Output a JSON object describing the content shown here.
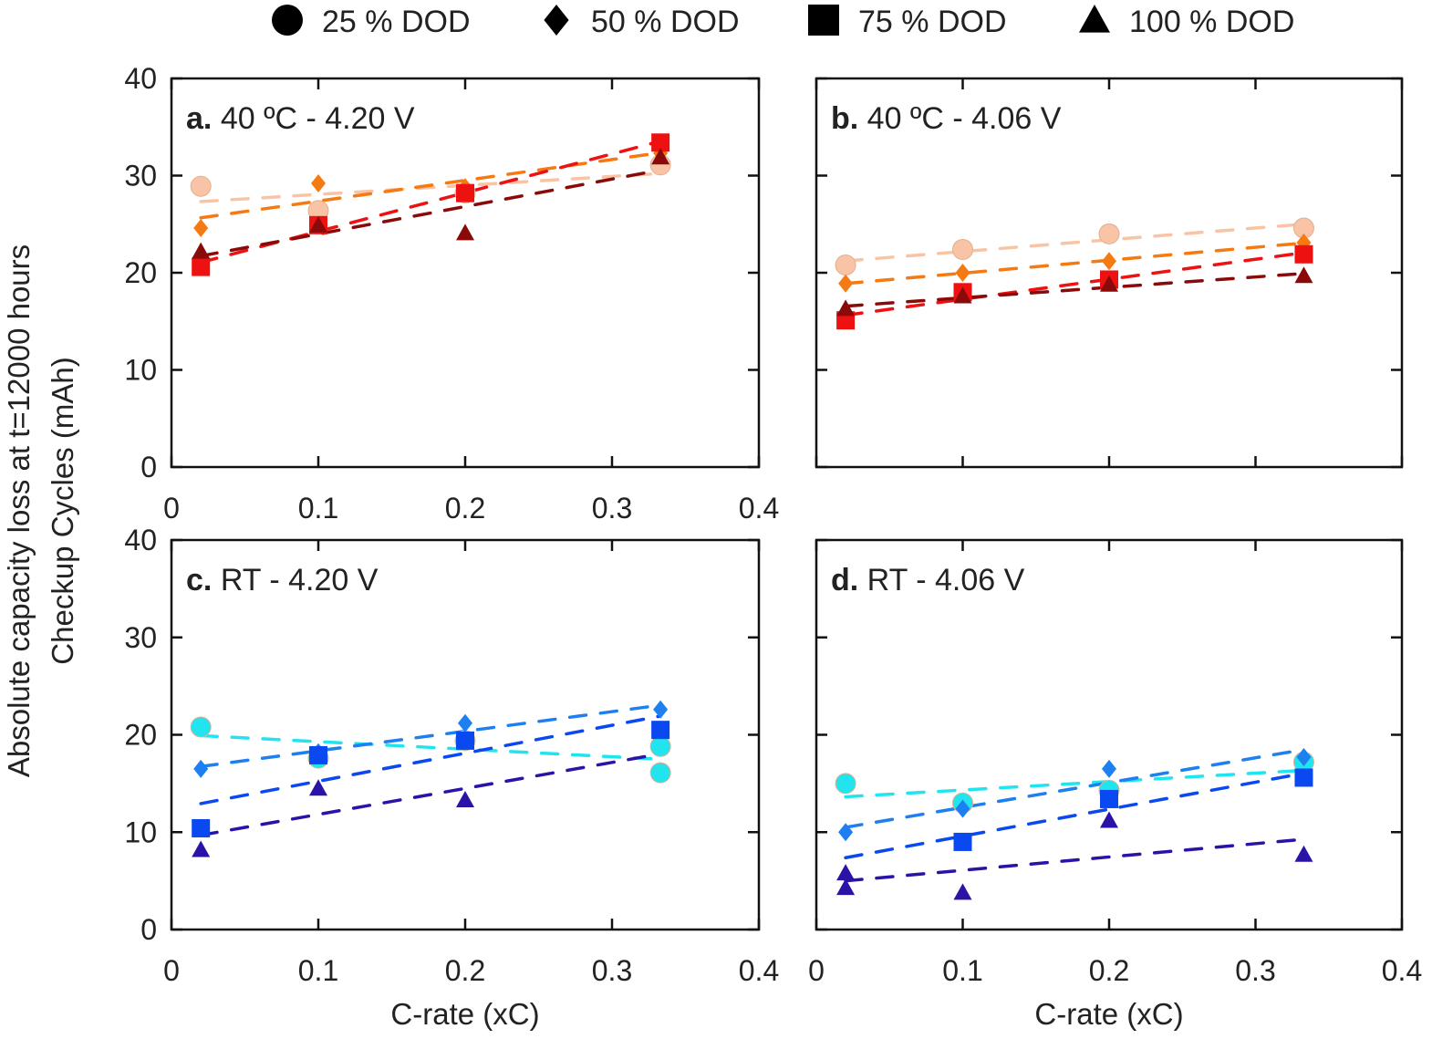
{
  "legend": [
    {
      "label": "25 % DOD",
      "marker": "circle"
    },
    {
      "label": "50 % DOD",
      "marker": "diamond"
    },
    {
      "label": "75 % DOD",
      "marker": "square"
    },
    {
      "label": "100 % DOD",
      "marker": "triangle"
    }
  ],
  "ylabel_line1": "Absolute capacity loss at t=12000 hours",
  "ylabel_line2": "Checkup Cycles (mAh)",
  "chart_data": [
    {
      "type": "scatter",
      "panel_letter": "a.",
      "title": "40 ºC - 4.20 V",
      "xlabel": "",
      "xlim": [
        0,
        0.4
      ],
      "ylim": [
        0,
        40
      ],
      "xticks": [
        "0",
        "0.1",
        "0.2",
        "0.3",
        "0.4"
      ],
      "yticks": [
        "0",
        "10",
        "20",
        "30",
        "40"
      ],
      "trendlines": "linear dashed",
      "colors": [
        "#f9c4a6",
        "#f57a12",
        "#ee1111",
        "#8a0a0a"
      ],
      "series": [
        {
          "name": "25 % DOD",
          "points": [
            [
              0.02,
              28.9
            ],
            [
              0.1,
              26.4
            ],
            [
              0.2,
              28.2
            ],
            [
              0.333,
              31.1
            ]
          ]
        },
        {
          "name": "50 % DOD",
          "points": [
            [
              0.02,
              24.6
            ],
            [
              0.1,
              29.2
            ],
            [
              0.2,
              28.8
            ],
            [
              0.333,
              32.3
            ]
          ]
        },
        {
          "name": "75 % DOD",
          "points": [
            [
              0.02,
              20.6
            ],
            [
              0.1,
              24.9
            ],
            [
              0.2,
              28.2
            ],
            [
              0.333,
              33.4
            ]
          ]
        },
        {
          "name": "100 % DOD",
          "points": [
            [
              0.02,
              22.2
            ],
            [
              0.1,
              24.9
            ],
            [
              0.2,
              24.1
            ],
            [
              0.333,
              31.9
            ]
          ]
        }
      ]
    },
    {
      "type": "scatter",
      "panel_letter": "b.",
      "title": "40 ºC - 4.06 V",
      "xlabel": "",
      "xlim": [
        0,
        0.4
      ],
      "ylim": [
        0,
        40
      ],
      "xticks": [],
      "yticks": [],
      "trendlines": "linear dashed",
      "colors": [
        "#f9c4a6",
        "#f57a12",
        "#ee1111",
        "#8a0a0a"
      ],
      "series": [
        {
          "name": "25 % DOD",
          "points": [
            [
              0.02,
              20.8
            ],
            [
              0.1,
              22.4
            ],
            [
              0.2,
              24.0
            ],
            [
              0.333,
              24.6
            ]
          ]
        },
        {
          "name": "50 % DOD",
          "points": [
            [
              0.02,
              18.9
            ],
            [
              0.1,
              20.0
            ],
            [
              0.2,
              21.2
            ],
            [
              0.333,
              23.1
            ]
          ]
        },
        {
          "name": "75 % DOD",
          "points": [
            [
              0.02,
              15.1
            ],
            [
              0.1,
              18.0
            ],
            [
              0.2,
              19.3
            ],
            [
              0.333,
              21.9
            ]
          ]
        },
        {
          "name": "100 % DOD",
          "points": [
            [
              0.02,
              16.3
            ],
            [
              0.1,
              17.6
            ],
            [
              0.2,
              18.8
            ],
            [
              0.333,
              19.7
            ]
          ]
        }
      ]
    },
    {
      "type": "scatter",
      "panel_letter": "c.",
      "title": "RT - 4.20 V",
      "xlabel": "C-rate (xC)",
      "xlim": [
        0,
        0.4
      ],
      "ylim": [
        0,
        40
      ],
      "xticks": [
        "0",
        "0.1",
        "0.2",
        "0.3",
        "0.4"
      ],
      "yticks": [
        "0",
        "10",
        "20",
        "30",
        "40"
      ],
      "trendlines": "linear dashed",
      "colors": [
        "#22e4ee",
        "#1e80f0",
        "#0a48f0",
        "#2a14a8"
      ],
      "series": [
        {
          "name": "25 % DOD",
          "points": [
            [
              0.02,
              20.8
            ],
            [
              0.1,
              17.6
            ],
            [
              0.2,
              19.4
            ],
            [
              0.333,
              18.8
            ],
            [
              0.333,
              16.1
            ]
          ]
        },
        {
          "name": "50 % DOD",
          "points": [
            [
              0.02,
              16.5
            ],
            [
              0.1,
              18.2
            ],
            [
              0.2,
              21.2
            ],
            [
              0.333,
              22.6
            ]
          ]
        },
        {
          "name": "75 % DOD",
          "points": [
            [
              0.02,
              10.4
            ],
            [
              0.1,
              17.9
            ],
            [
              0.2,
              19.4
            ],
            [
              0.333,
              20.5
            ]
          ]
        },
        {
          "name": "100 % DOD",
          "points": [
            [
              0.02,
              8.2
            ],
            [
              0.1,
              14.5
            ],
            [
              0.2,
              13.3
            ]
          ]
        }
      ]
    },
    {
      "type": "scatter",
      "panel_letter": "d.",
      "title": "RT - 4.06 V",
      "xlabel": "C-rate (xC)",
      "xlim": [
        0,
        0.4
      ],
      "ylim": [
        0,
        40
      ],
      "xticks": [
        "0",
        "0.1",
        "0.2",
        "0.3",
        "0.4"
      ],
      "yticks": [],
      "trendlines": "linear dashed",
      "colors": [
        "#22e4ee",
        "#1e80f0",
        "#0a48f0",
        "#2a14a8"
      ],
      "series": [
        {
          "name": "25 % DOD",
          "points": [
            [
              0.02,
              15.0
            ],
            [
              0.1,
              13.0
            ],
            [
              0.2,
              14.3
            ],
            [
              0.333,
              17.2
            ]
          ]
        },
        {
          "name": "50 % DOD",
          "points": [
            [
              0.02,
              10.0
            ],
            [
              0.1,
              12.4
            ],
            [
              0.2,
              16.5
            ],
            [
              0.333,
              17.7
            ]
          ]
        },
        {
          "name": "75 % DOD",
          "points": [
            [
              0.1,
              9.0
            ],
            [
              0.2,
              13.4
            ],
            [
              0.333,
              15.6
            ]
          ]
        },
        {
          "name": "100 % DOD",
          "points": [
            [
              0.02,
              5.8
            ],
            [
              0.02,
              4.3
            ],
            [
              0.1,
              3.8
            ],
            [
              0.2,
              11.2
            ],
            [
              0.333,
              7.7
            ]
          ]
        }
      ]
    }
  ]
}
